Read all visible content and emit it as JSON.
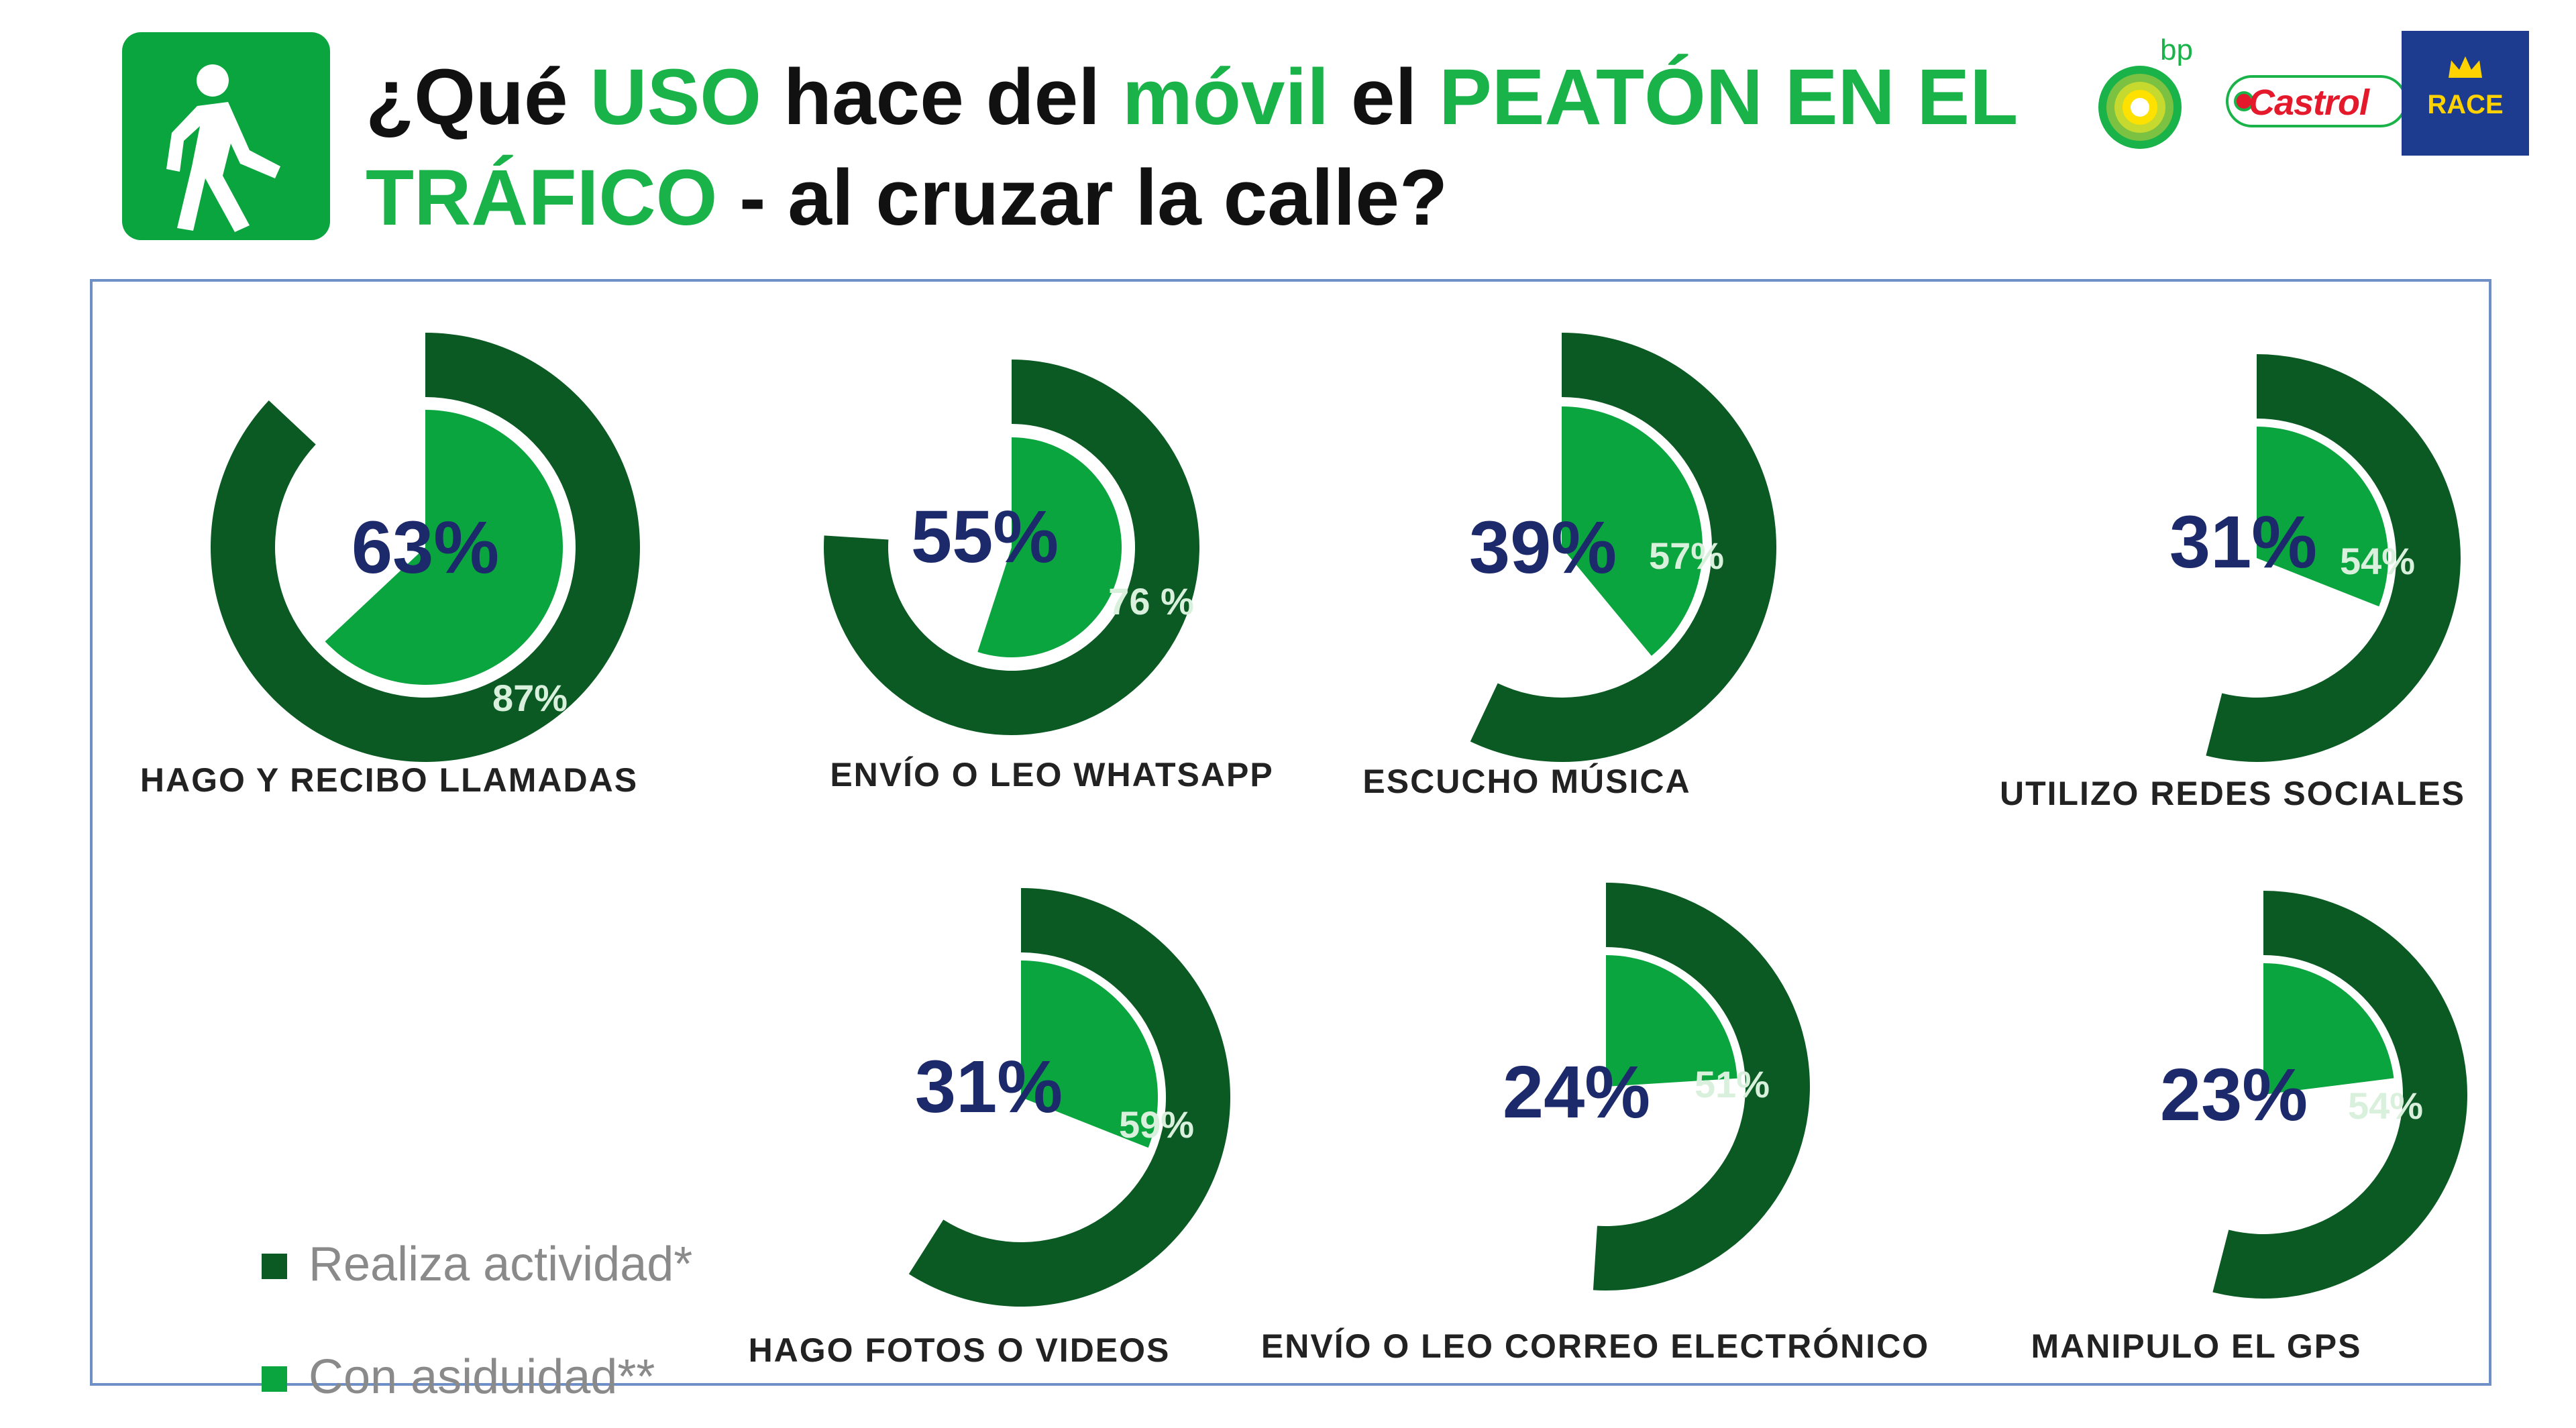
{
  "header": {
    "title_parts": [
      {
        "text": "¿Qué ",
        "highlight": false
      },
      {
        "text": "USO",
        "highlight": true
      },
      {
        "text": " hace del ",
        "highlight": false
      },
      {
        "text": "móvil",
        "highlight": true
      },
      {
        "text": " el ",
        "highlight": false
      },
      {
        "text": "PEATÓN EN EL TRÁFICO",
        "highlight": true
      },
      {
        "text": " - al cruzar la calle?",
        "highlight": false
      }
    ],
    "icon": "pedestrian-walking-icon"
  },
  "logos": {
    "bp_text": "bp",
    "castrol_text": "Castrol",
    "race_text": "RACE"
  },
  "colors": {
    "dark_green": "#0b5a23",
    "light_green": "#0aa53e",
    "title_green": "#1ab34a",
    "value_blue": "#1c2a6b"
  },
  "legend": [
    {
      "label": "Realiza actividad*",
      "color": "#0b5a23"
    },
    {
      "label": "Con asiduidad**",
      "color": "#0aa53e"
    }
  ],
  "chart_data": {
    "type": "radial-donut",
    "series": [
      {
        "name": "Realiza actividad*",
        "values": [
          87,
          76,
          57,
          54,
          59,
          51,
          54
        ]
      },
      {
        "name": "Con asiduidad**",
        "values": [
          63,
          55,
          39,
          31,
          31,
          24,
          23
        ]
      }
    ],
    "categories": [
      "HAGO Y RECIBO LLAMADAS",
      "ENVÍO O LEO WHATSAPP",
      "ESCUCHO MÚSICA",
      "UTILIZO REDES SOCIALES",
      "HAGO FOTOS O VIDEOS",
      "ENVÍO O LEO CORREO ELECTRÓNICO",
      "MANIPULO EL GPS"
    ],
    "items": [
      {
        "label": "HAGO Y RECIBO LLAMADAS",
        "realiza": 87,
        "asiduidad": 63,
        "realiza_label": "87%",
        "asiduidad_label": "63%"
      },
      {
        "label": "ENVÍO O LEO WHATSAPP",
        "realiza": 76,
        "asiduidad": 55,
        "realiza_label": "76 %",
        "asiduidad_label": "55%"
      },
      {
        "label": "ESCUCHO MÚSICA",
        "realiza": 57,
        "asiduidad": 39,
        "realiza_label": "57%",
        "asiduidad_label": "39%"
      },
      {
        "label": "UTILIZO REDES SOCIALES",
        "realiza": 54,
        "asiduidad": 31,
        "realiza_label": "54%",
        "asiduidad_label": "31%"
      },
      {
        "label": "HAGO FOTOS O VIDEOS",
        "realiza": 59,
        "asiduidad": 31,
        "realiza_label": "59%",
        "asiduidad_label": "31%"
      },
      {
        "label": "ENVÍO O LEO CORREO ELECTRÓNICO",
        "realiza": 51,
        "asiduidad": 24,
        "realiza_label": "51%",
        "asiduidad_label": "24%"
      },
      {
        "label": "MANIPULO EL GPS",
        "realiza": 54,
        "asiduidad": 23,
        "realiza_label": "54%",
        "asiduidad_label": "23%"
      }
    ]
  }
}
